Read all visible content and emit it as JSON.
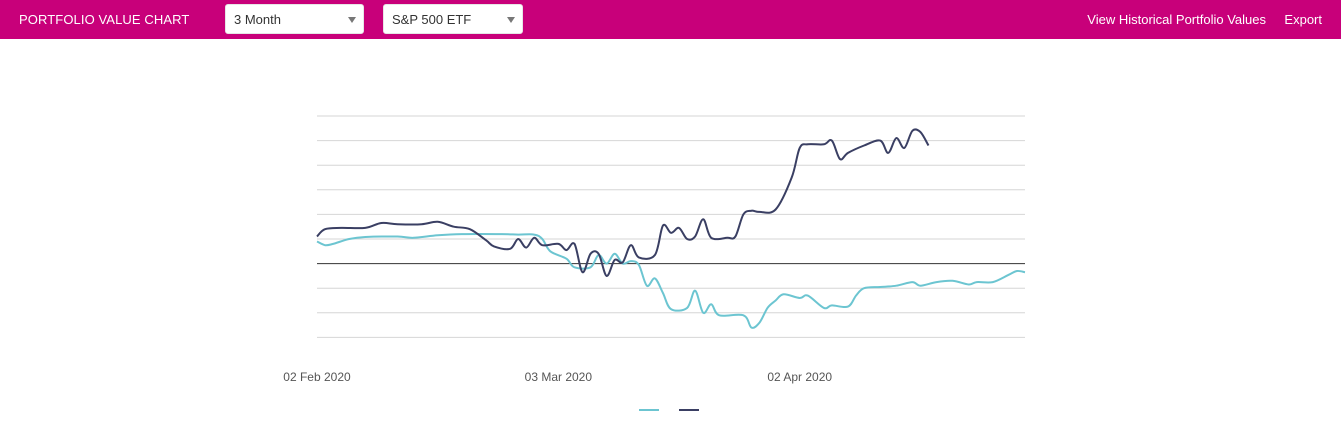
{
  "header": {
    "title": "PORTFOLIO VALUE CHART",
    "period": "3 Month",
    "benchmark": "S&P 500 ETF",
    "historical_link": "View Historical Portfolio Values",
    "export_link": "Export"
  },
  "colors": {
    "header_bg": "#c8007a",
    "series_portfolio": "#6cc5d1",
    "series_benchmark": "#3a3f63"
  },
  "chart_data": {
    "type": "line",
    "title": "",
    "xlabel": "",
    "ylabel": "",
    "x_ticks": [
      "02 Feb 2020",
      "03 Mar 2020",
      "02 Apr 2020"
    ],
    "xlim": [
      "2020-02-02",
      "2020-04-30"
    ],
    "ylim": [
      -4,
      6
    ],
    "grid": true,
    "legend": "bottom-center",
    "baseline": 0,
    "series": [
      {
        "color": "#6cc5d1",
        "points": [
          [
            "2020-02-02",
            0.9
          ],
          [
            "2020-02-03",
            0.75
          ],
          [
            "2020-02-04",
            0.8
          ],
          [
            "2020-02-06",
            1.0
          ],
          [
            "2020-02-08",
            1.08
          ],
          [
            "2020-02-12",
            1.1
          ],
          [
            "2020-02-14",
            1.05
          ],
          [
            "2020-02-17",
            1.15
          ],
          [
            "2020-02-20",
            1.2
          ],
          [
            "2020-02-25",
            1.2
          ],
          [
            "2020-02-27",
            1.18
          ],
          [
            "2020-02-29",
            1.18
          ],
          [
            "2020-03-01",
            1.0
          ],
          [
            "2020-03-02",
            0.5
          ],
          [
            "2020-03-04",
            0.2
          ],
          [
            "2020-03-05",
            -0.15
          ],
          [
            "2020-03-07",
            -0.15
          ],
          [
            "2020-03-08",
            0.35
          ],
          [
            "2020-03-09",
            0.0
          ],
          [
            "2020-03-10",
            0.4
          ],
          [
            "2020-03-11",
            0.0
          ],
          [
            "2020-03-12",
            0.1
          ],
          [
            "2020-03-13",
            -0.05
          ],
          [
            "2020-03-14",
            -0.9
          ],
          [
            "2020-03-15",
            -0.6
          ],
          [
            "2020-03-16",
            -1.2
          ],
          [
            "2020-03-17",
            -1.85
          ],
          [
            "2020-03-19",
            -1.8
          ],
          [
            "2020-03-20",
            -1.1
          ],
          [
            "2020-03-21",
            -2.0
          ],
          [
            "2020-03-22",
            -1.65
          ],
          [
            "2020-03-23",
            -2.1
          ],
          [
            "2020-03-26",
            -2.1
          ],
          [
            "2020-03-27",
            -2.6
          ],
          [
            "2020-03-28",
            -2.4
          ],
          [
            "2020-03-29",
            -1.8
          ],
          [
            "2020-03-30",
            -1.5
          ],
          [
            "2020-03-31",
            -1.25
          ],
          [
            "2020-04-02",
            -1.4
          ],
          [
            "2020-04-03",
            -1.3
          ],
          [
            "2020-04-05",
            -1.8
          ],
          [
            "2020-04-06",
            -1.7
          ],
          [
            "2020-04-08",
            -1.75
          ],
          [
            "2020-04-09",
            -1.3
          ],
          [
            "2020-04-10",
            -1.0
          ],
          [
            "2020-04-12",
            -0.95
          ],
          [
            "2020-04-14",
            -0.9
          ],
          [
            "2020-04-16",
            -0.75
          ],
          [
            "2020-04-17",
            -0.9
          ],
          [
            "2020-04-19",
            -0.75
          ],
          [
            "2020-04-21",
            -0.7
          ],
          [
            "2020-04-23",
            -0.85
          ],
          [
            "2020-04-24",
            -0.75
          ],
          [
            "2020-04-26",
            -0.75
          ],
          [
            "2020-04-28",
            -0.45
          ],
          [
            "2020-04-29",
            -0.3
          ],
          [
            "2020-04-30",
            -0.35
          ]
        ]
      },
      {
        "color": "#3a3f63",
        "points": [
          [
            "2020-02-02",
            1.1
          ],
          [
            "2020-02-03",
            1.4
          ],
          [
            "2020-02-05",
            1.45
          ],
          [
            "2020-02-08",
            1.45
          ],
          [
            "2020-02-10",
            1.65
          ],
          [
            "2020-02-12",
            1.6
          ],
          [
            "2020-02-15",
            1.6
          ],
          [
            "2020-02-17",
            1.7
          ],
          [
            "2020-02-19",
            1.5
          ],
          [
            "2020-02-21",
            1.4
          ],
          [
            "2020-02-23",
            0.95
          ],
          [
            "2020-02-24",
            0.7
          ],
          [
            "2020-02-26",
            0.6
          ],
          [
            "2020-02-27",
            1.0
          ],
          [
            "2020-02-28",
            0.65
          ],
          [
            "2020-02-29",
            1.05
          ],
          [
            "2020-03-01",
            0.75
          ],
          [
            "2020-03-03",
            0.8
          ],
          [
            "2020-03-04",
            0.55
          ],
          [
            "2020-03-05",
            0.8
          ],
          [
            "2020-03-06",
            -0.35
          ],
          [
            "2020-03-07",
            0.4
          ],
          [
            "2020-03-08",
            0.4
          ],
          [
            "2020-03-09",
            -0.5
          ],
          [
            "2020-03-10",
            0.15
          ],
          [
            "2020-03-11",
            0.05
          ],
          [
            "2020-03-12",
            0.75
          ],
          [
            "2020-03-13",
            0.25
          ],
          [
            "2020-03-15",
            0.35
          ],
          [
            "2020-03-16",
            1.55
          ],
          [
            "2020-03-17",
            1.25
          ],
          [
            "2020-03-18",
            1.45
          ],
          [
            "2020-03-19",
            1.0
          ],
          [
            "2020-03-20",
            1.1
          ],
          [
            "2020-03-21",
            1.8
          ],
          [
            "2020-03-22",
            1.05
          ],
          [
            "2020-03-24",
            1.05
          ],
          [
            "2020-03-25",
            1.1
          ],
          [
            "2020-03-26",
            2.0
          ],
          [
            "2020-03-27",
            2.15
          ],
          [
            "2020-03-28",
            2.1
          ],
          [
            "2020-03-30",
            2.2
          ],
          [
            "2020-04-01",
            3.5
          ],
          [
            "2020-04-02",
            4.7
          ],
          [
            "2020-04-03",
            4.85
          ],
          [
            "2020-04-05",
            4.85
          ],
          [
            "2020-04-06",
            5.0
          ],
          [
            "2020-04-07",
            4.25
          ],
          [
            "2020-04-08",
            4.5
          ],
          [
            "2020-04-10",
            4.8
          ],
          [
            "2020-04-12",
            5.0
          ],
          [
            "2020-04-13",
            4.5
          ],
          [
            "2020-04-14",
            5.1
          ],
          [
            "2020-04-15",
            4.7
          ],
          [
            "2020-04-16",
            5.4
          ],
          [
            "2020-04-17",
            5.35
          ],
          [
            "2020-04-18",
            4.8
          ]
        ]
      }
    ]
  }
}
